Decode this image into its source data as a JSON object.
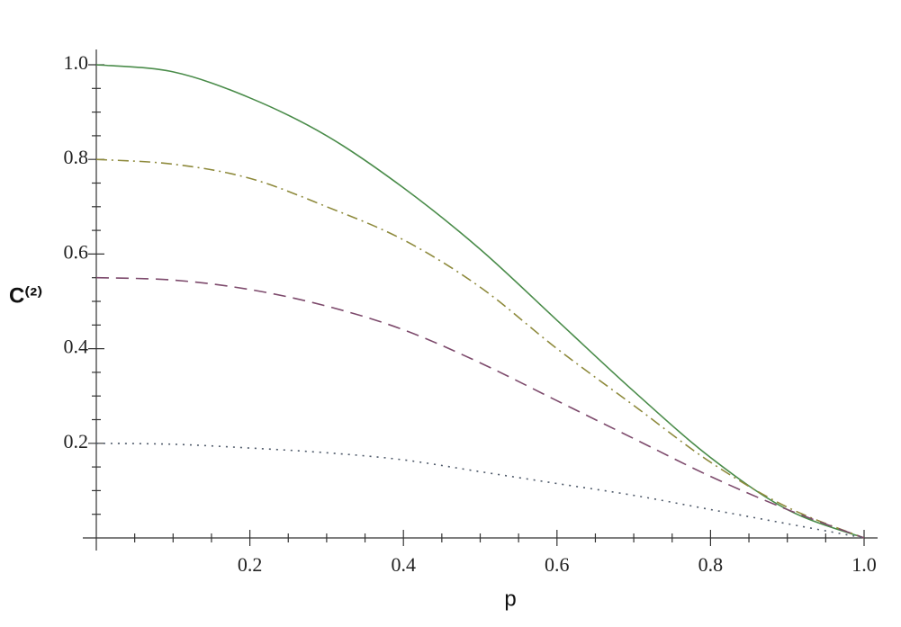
{
  "chart_data": {
    "type": "line",
    "xlabel": "p",
    "ylabel": "C⁽²⁾",
    "x": [
      0,
      0.1,
      0.2,
      0.3,
      0.4,
      0.5,
      0.6,
      0.7,
      0.8,
      0.9,
      1
    ],
    "series": [
      {
        "color": "#4a8c4a",
        "style": "solid",
        "values": [
          1.0,
          0.985,
          0.93,
          0.85,
          0.74,
          0.61,
          0.46,
          0.31,
          0.17,
          0.06,
          0
        ]
      },
      {
        "color": "#8e8a3c",
        "style": "dashdot",
        "values": [
          0.8,
          0.79,
          0.76,
          0.7,
          0.63,
          0.53,
          0.4,
          0.28,
          0.16,
          0.065,
          0
        ]
      },
      {
        "color": "#7d4a6c",
        "style": "dashed",
        "values": [
          0.55,
          0.545,
          0.525,
          0.49,
          0.44,
          0.37,
          0.29,
          0.21,
          0.13,
          0.06,
          0
        ]
      },
      {
        "color": "#4f5a6a",
        "style": "dotted",
        "values": [
          0.2,
          0.198,
          0.19,
          0.18,
          0.165,
          0.14,
          0.115,
          0.09,
          0.06,
          0.03,
          0
        ]
      }
    ],
    "xlim": [
      0,
      1
    ],
    "ylim": [
      0,
      1
    ],
    "xticks": [
      0.2,
      0.4,
      0.6,
      0.8,
      {
        "value": 1,
        "label": "1.0"
      }
    ],
    "yticks": [
      0.2,
      0.4,
      0.6,
      0.8,
      {
        "value": 1,
        "label": "1.0"
      }
    ],
    "xminorticks": [
      0.05,
      0.1,
      0.15,
      0.25,
      0.3,
      0.35,
      0.45,
      0.5,
      0.55,
      0.65,
      0.7,
      0.75,
      0.85,
      0.9,
      0.95
    ],
    "yminorticks": [
      0.05,
      0.1,
      0.15,
      0.25,
      0.3,
      0.35,
      0.45,
      0.5,
      0.55,
      0.65,
      0.7,
      0.75,
      0.85,
      0.9,
      0.95
    ],
    "grid": false
  }
}
